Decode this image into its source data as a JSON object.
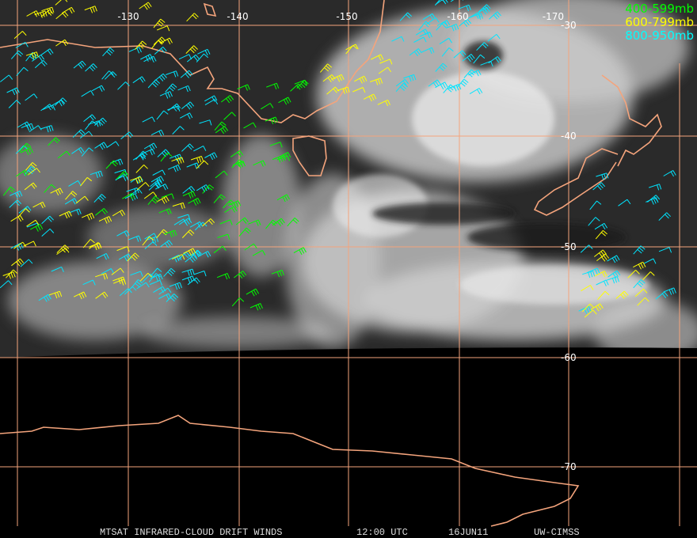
{
  "map": {
    "longitude_labels": [
      "-130",
      "-140",
      "-150",
      "-160",
      "-170"
    ],
    "latitude_labels": [
      "-30",
      "-40",
      "-50",
      "-60",
      "-70"
    ]
  },
  "legend": [
    "400-599mb",
    "600-799mb",
    "800-950mb"
  ],
  "footer": {
    "product": "MTSAT INFRARED-CLOUD DRIFT WINDS",
    "time": "12:00 UTC",
    "date": "16JUN11",
    "source": "UW-CIMSS"
  }
}
